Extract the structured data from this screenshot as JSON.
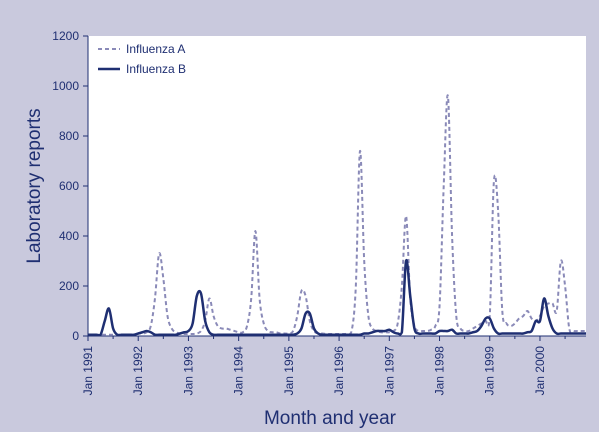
{
  "colors": {
    "frame": "#c9c9dd",
    "plot_background": "#ffffff",
    "text": "#1f2f72",
    "axis": "#1f2f72",
    "influenza_a": "#8a8ab8",
    "influenza_b": "#1f2f72"
  },
  "chart_data": {
    "type": "line",
    "title": "",
    "xlabel": "Month and year",
    "ylabel": "Laboratory reports",
    "ylim": [
      0,
      1200
    ],
    "yticks": [
      0,
      200,
      400,
      600,
      800,
      1000,
      1200
    ],
    "ytick_labels": [
      "0",
      "200",
      "400",
      "600",
      "800",
      "1000",
      "1200"
    ],
    "xlim": [
      "1991-01",
      "2000-12"
    ],
    "xtick_labels": [
      "Jan 1991",
      "Jan 1992",
      "Jan 1993",
      "Jan 1994",
      "Jan 1995",
      "Jan 1996",
      "Jan 1997",
      "Jan 1998",
      "Jan 1999",
      "Jan 2000"
    ],
    "grid": false,
    "legend": "top-left",
    "x": [
      "1991-01",
      "1991-02",
      "1991-03",
      "1991-04",
      "1991-05",
      "1991-06",
      "1991-07",
      "1991-08",
      "1991-09",
      "1991-10",
      "1991-11",
      "1991-12",
      "1992-01",
      "1992-02",
      "1992-03",
      "1992-04",
      "1992-05",
      "1992-06",
      "1992-07",
      "1992-08",
      "1992-09",
      "1992-10",
      "1992-11",
      "1992-12",
      "1993-01",
      "1993-02",
      "1993-03",
      "1993-04",
      "1993-05",
      "1993-06",
      "1993-07",
      "1993-08",
      "1993-09",
      "1993-10",
      "1993-11",
      "1993-12",
      "1994-01",
      "1994-02",
      "1994-03",
      "1994-04",
      "1994-05",
      "1994-06",
      "1994-07",
      "1994-08",
      "1994-09",
      "1994-10",
      "1994-11",
      "1994-12",
      "1995-01",
      "1995-02",
      "1995-03",
      "1995-04",
      "1995-05",
      "1995-06",
      "1995-07",
      "1995-08",
      "1995-09",
      "1995-10",
      "1995-11",
      "1995-12",
      "1996-01",
      "1996-02",
      "1996-03",
      "1996-04",
      "1996-05",
      "1996-06",
      "1996-07",
      "1996-08",
      "1996-09",
      "1996-10",
      "1996-11",
      "1996-12",
      "1997-01",
      "1997-02",
      "1997-03",
      "1997-04",
      "1997-05",
      "1997-06",
      "1997-07",
      "1997-08",
      "1997-09",
      "1997-10",
      "1997-11",
      "1997-12",
      "1998-01",
      "1998-02",
      "1998-03",
      "1998-04",
      "1998-05",
      "1998-06",
      "1998-07",
      "1998-08",
      "1998-09",
      "1998-10",
      "1998-11",
      "1998-12",
      "1999-01",
      "1999-02",
      "1999-03",
      "1999-04",
      "1999-05",
      "1999-06",
      "1999-07",
      "1999-08",
      "1999-09",
      "1999-10",
      "1999-11",
      "1999-12",
      "2000-01",
      "2000-02",
      "2000-03",
      "2000-04",
      "2000-05",
      "2000-06",
      "2000-07",
      "2000-08",
      "2000-09",
      "2000-10",
      "2000-11",
      "2000-12"
    ],
    "series": [
      {
        "name": "Influenza A",
        "style": "dashed",
        "values": [
          5,
          5,
          5,
          5,
          5,
          5,
          5,
          5,
          5,
          5,
          5,
          5,
          10,
          10,
          15,
          40,
          150,
          330,
          230,
          80,
          30,
          15,
          10,
          8,
          8,
          8,
          10,
          20,
          60,
          150,
          80,
          40,
          30,
          30,
          25,
          20,
          15,
          15,
          40,
          150,
          420,
          150,
          50,
          20,
          15,
          15,
          10,
          10,
          10,
          20,
          80,
          180,
          160,
          60,
          20,
          10,
          10,
          8,
          8,
          8,
          8,
          8,
          10,
          20,
          200,
          740,
          300,
          80,
          30,
          20,
          15,
          15,
          15,
          20,
          50,
          200,
          480,
          150,
          40,
          20,
          20,
          20,
          25,
          40,
          120,
          600,
          960,
          400,
          80,
          30,
          20,
          20,
          30,
          40,
          50,
          60,
          80,
          620,
          500,
          100,
          50,
          40,
          50,
          70,
          80,
          100,
          70,
          60,
          80,
          120,
          130,
          130,
          100,
          300,
          200,
          30,
          20,
          20,
          20,
          20
        ]
      },
      {
        "name": "Influenza B",
        "style": "solid",
        "values": [
          5,
          5,
          5,
          5,
          60,
          110,
          30,
          5,
          5,
          5,
          5,
          5,
          10,
          15,
          20,
          15,
          5,
          5,
          5,
          5,
          5,
          5,
          10,
          15,
          20,
          50,
          160,
          170,
          60,
          15,
          5,
          5,
          5,
          5,
          5,
          5,
          5,
          5,
          5,
          5,
          5,
          5,
          5,
          5,
          5,
          5,
          5,
          5,
          5,
          5,
          10,
          30,
          90,
          90,
          30,
          10,
          5,
          5,
          5,
          5,
          5,
          5,
          5,
          5,
          5,
          5,
          10,
          10,
          15,
          20,
          20,
          20,
          25,
          15,
          10,
          15,
          300,
          160,
          30,
          10,
          10,
          10,
          10,
          10,
          20,
          20,
          20,
          25,
          10,
          10,
          10,
          10,
          15,
          20,
          40,
          70,
          70,
          30,
          10,
          10,
          10,
          10,
          10,
          10,
          10,
          15,
          20,
          60,
          60,
          150,
          80,
          30,
          10,
          10,
          10,
          10,
          10,
          10,
          10,
          10
        ]
      }
    ]
  }
}
